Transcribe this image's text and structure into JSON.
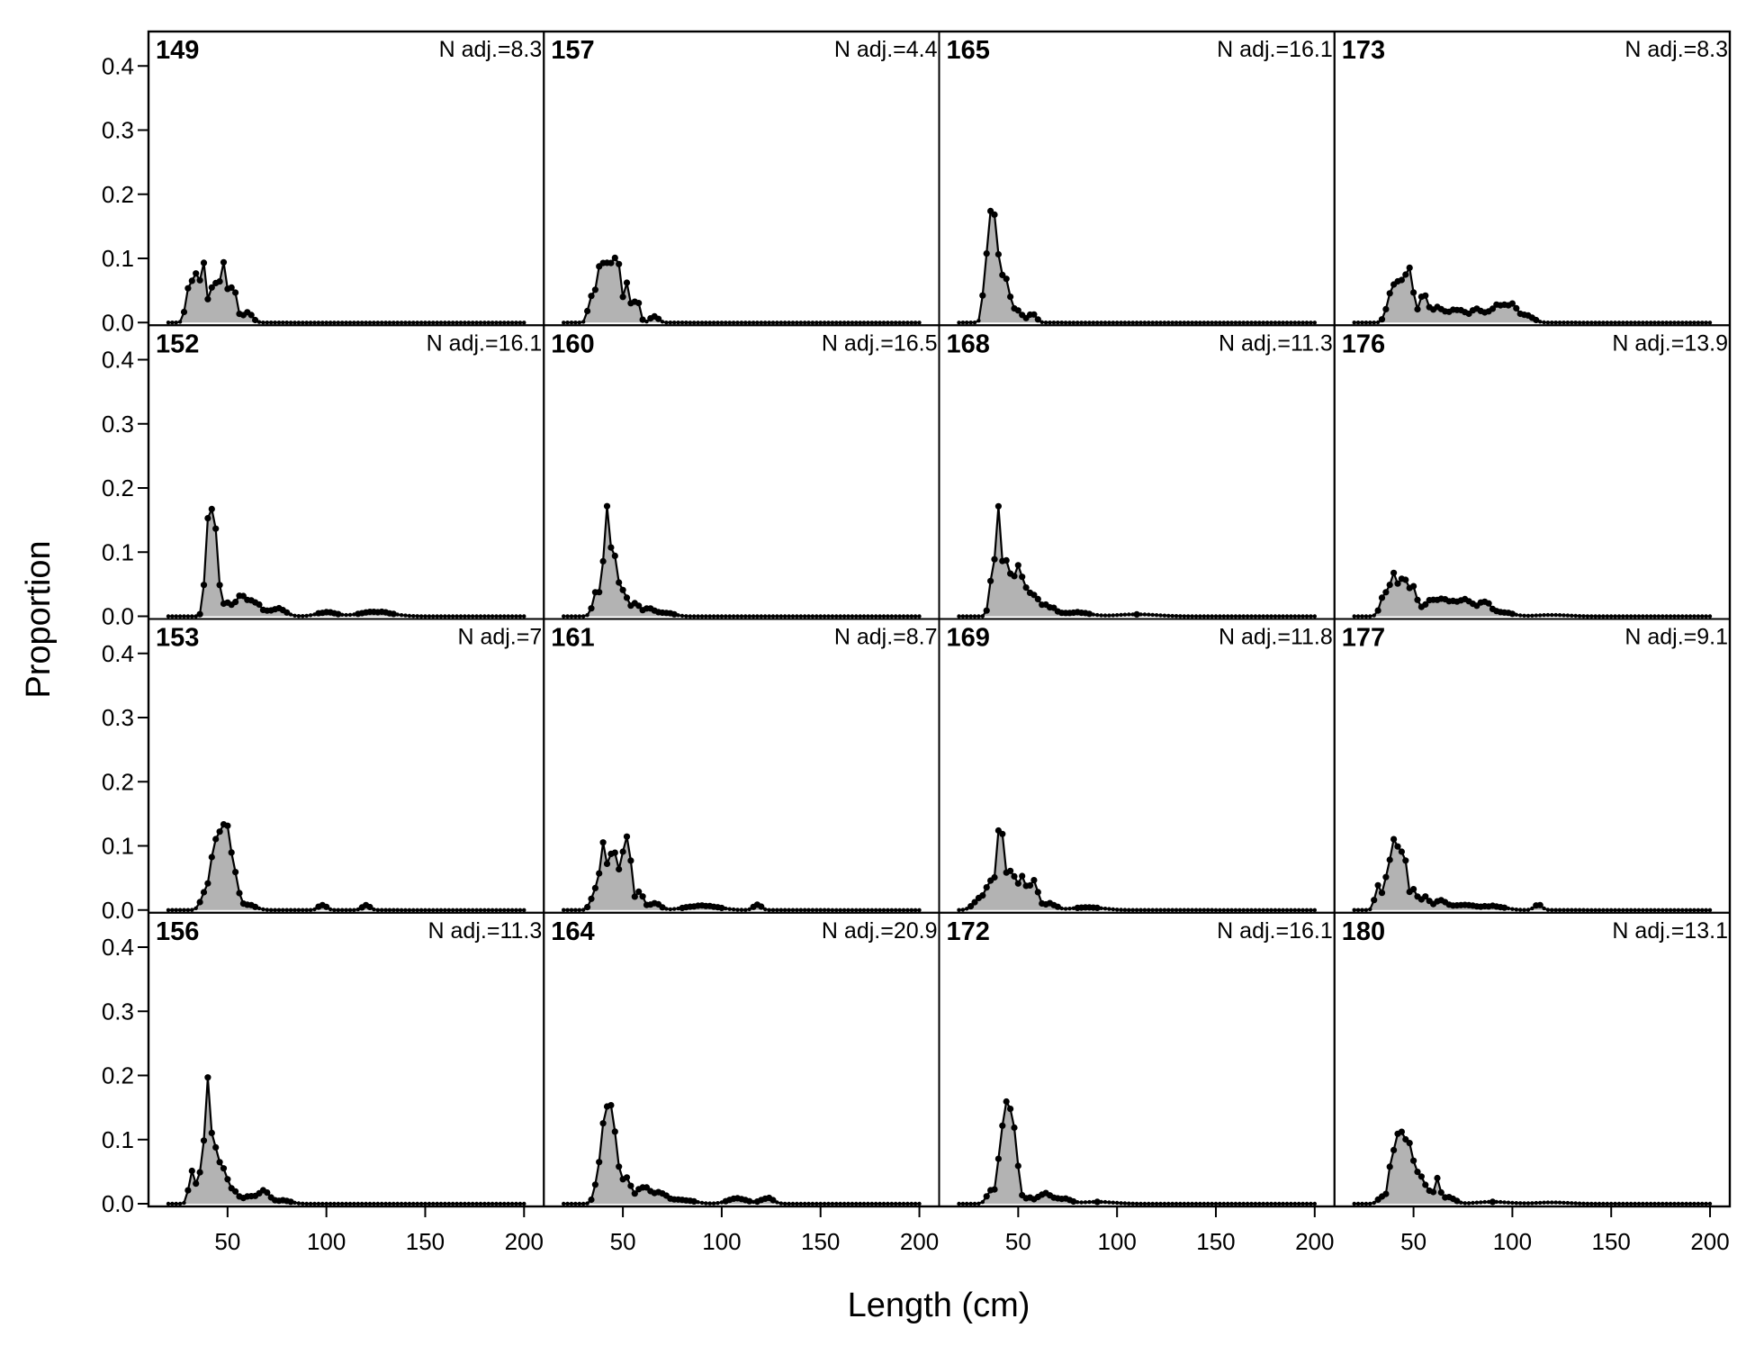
{
  "chart_data": {
    "type": "area",
    "xlabel": "Length (cm)",
    "ylabel": "Proportion",
    "xlim": [
      10,
      210
    ],
    "ylim": [
      0,
      0.42
    ],
    "xticks": [
      50,
      100,
      150,
      200
    ],
    "yticks": [
      0.0,
      0.1,
      0.2,
      0.3,
      0.4
    ],
    "xtick_labels": [
      "50",
      "100",
      "150",
      "200"
    ],
    "ytick_labels": [
      "0.0",
      "0.1",
      "0.2",
      "0.3",
      "0.4"
    ],
    "layout": {
      "rows": 4,
      "cols": 4
    },
    "colors": {
      "fill": "#b3b3b3",
      "line": "#000000",
      "points": "#000000"
    },
    "panels": [
      {
        "id": "149",
        "nadj": "N adj.=8.3",
        "peaks": [
          [
            30,
            0.04,
            1.5
          ],
          [
            34,
            0.075,
            2
          ],
          [
            38,
            0.08,
            1.2
          ],
          [
            43,
            0.06,
            2
          ],
          [
            48,
            0.085,
            1.8
          ],
          [
            53,
            0.06,
            1.5
          ],
          [
            60,
            0.015,
            2.5
          ]
        ]
      },
      {
        "id": "157",
        "nadj": "N adj.=4.4",
        "peaks": [
          [
            34,
            0.04,
            1.5
          ],
          [
            39,
            0.095,
            2
          ],
          [
            43,
            0.1,
            1.2
          ],
          [
            47,
            0.11,
            1.5
          ],
          [
            52,
            0.06,
            1.5
          ],
          [
            57,
            0.035,
            1.5
          ],
          [
            66,
            0.01,
            2
          ]
        ]
      },
      {
        "id": "165",
        "nadj": "N adj.=16.1",
        "peaks": [
          [
            34,
            0.1,
            1.5
          ],
          [
            37,
            0.165,
            1.2
          ],
          [
            40,
            0.1,
            1.5
          ],
          [
            44,
            0.06,
            2
          ],
          [
            50,
            0.02,
            2
          ],
          [
            57,
            0.015,
            2
          ]
        ]
      },
      {
        "id": "173",
        "nadj": "N adj.=8.3",
        "peaks": [
          [
            38,
            0.03,
            2
          ],
          [
            43,
            0.06,
            3
          ],
          [
            48,
            0.065,
            2
          ],
          [
            55,
            0.04,
            2
          ],
          [
            62,
            0.025,
            3
          ],
          [
            72,
            0.02,
            4
          ],
          [
            82,
            0.02,
            3
          ],
          [
            92,
            0.025,
            4
          ],
          [
            100,
            0.025,
            3
          ],
          [
            108,
            0.01,
            3
          ]
        ]
      },
      {
        "id": "152",
        "nadj": "N adj.=16.1",
        "peaks": [
          [
            40,
            0.1,
            1.5
          ],
          [
            43,
            0.145,
            2
          ],
          [
            50,
            0.02,
            2
          ],
          [
            57,
            0.03,
            3
          ],
          [
            64,
            0.02,
            3
          ],
          [
            75,
            0.012,
            4
          ],
          [
            100,
            0.006,
            5
          ],
          [
            125,
            0.007,
            8
          ]
        ]
      },
      {
        "id": "160",
        "nadj": "N adj.=16.5",
        "peaks": [
          [
            37,
            0.04,
            2
          ],
          [
            42,
            0.18,
            1.5
          ],
          [
            46,
            0.08,
            1.5
          ],
          [
            50,
            0.04,
            2
          ],
          [
            56,
            0.02,
            2
          ],
          [
            63,
            0.012,
            3
          ],
          [
            72,
            0.005,
            4
          ]
        ]
      },
      {
        "id": "168",
        "nadj": "N adj.=11.3",
        "peaks": [
          [
            37,
            0.07,
            1.5
          ],
          [
            40,
            0.15,
            1.2
          ],
          [
            44,
            0.08,
            2
          ],
          [
            50,
            0.08,
            2.5
          ],
          [
            57,
            0.03,
            3
          ],
          [
            65,
            0.015,
            4
          ],
          [
            80,
            0.006,
            6
          ],
          [
            110,
            0.003,
            10
          ]
        ]
      },
      {
        "id": "176",
        "nadj": "N adj.=13.9",
        "peaks": [
          [
            35,
            0.03,
            2
          ],
          [
            40,
            0.06,
            2
          ],
          [
            45,
            0.06,
            2
          ],
          [
            50,
            0.04,
            2
          ],
          [
            58,
            0.02,
            3
          ],
          [
            66,
            0.025,
            4
          ],
          [
            76,
            0.025,
            4
          ],
          [
            86,
            0.02,
            3
          ],
          [
            95,
            0.006,
            5
          ],
          [
            120,
            0.002,
            8
          ]
        ]
      },
      {
        "id": "153",
        "nadj": "N adj.=7",
        "peaks": [
          [
            38,
            0.02,
            2
          ],
          [
            44,
            0.11,
            2.5
          ],
          [
            49,
            0.13,
            2
          ],
          [
            53,
            0.06,
            2
          ],
          [
            60,
            0.008,
            4
          ],
          [
            98,
            0.008,
            2
          ],
          [
            120,
            0.007,
            2
          ]
        ]
      },
      {
        "id": "161",
        "nadj": "N adj.=8.7",
        "peaks": [
          [
            36,
            0.03,
            2
          ],
          [
            40,
            0.1,
            1.5
          ],
          [
            45,
            0.09,
            2
          ],
          [
            50,
            0.08,
            1.5
          ],
          [
            53,
            0.11,
            1.2
          ],
          [
            58,
            0.03,
            2
          ],
          [
            66,
            0.01,
            3
          ],
          [
            90,
            0.007,
            8
          ],
          [
            118,
            0.008,
            2
          ]
        ]
      },
      {
        "id": "169",
        "nadj": "N adj.=11.8",
        "peaks": [
          [
            30,
            0.015,
            3
          ],
          [
            36,
            0.04,
            2.5
          ],
          [
            41,
            0.13,
            1.5
          ],
          [
            46,
            0.06,
            2
          ],
          [
            52,
            0.05,
            2.5
          ],
          [
            58,
            0.04,
            2
          ],
          [
            66,
            0.01,
            3
          ],
          [
            85,
            0.004,
            8
          ]
        ]
      },
      {
        "id": "177",
        "nadj": "N adj.=9.1",
        "peaks": [
          [
            32,
            0.04,
            1.5
          ],
          [
            37,
            0.06,
            1.5
          ],
          [
            41,
            0.11,
            1.8
          ],
          [
            45,
            0.09,
            1.5
          ],
          [
            50,
            0.03,
            2
          ],
          [
            56,
            0.02,
            2
          ],
          [
            64,
            0.015,
            3
          ],
          [
            75,
            0.008,
            5
          ],
          [
            90,
            0.006,
            6
          ],
          [
            113,
            0.008,
            2
          ]
        ]
      },
      {
        "id": "156",
        "nadj": "N adj.=11.3",
        "peaks": [
          [
            32,
            0.05,
            1.5
          ],
          [
            36,
            0.04,
            1.2
          ],
          [
            40,
            0.21,
            1.5
          ],
          [
            44,
            0.08,
            1.5
          ],
          [
            48,
            0.05,
            2
          ],
          [
            53,
            0.02,
            2
          ],
          [
            60,
            0.01,
            3
          ],
          [
            68,
            0.02,
            3
          ],
          [
            78,
            0.005,
            4
          ]
        ]
      },
      {
        "id": "164",
        "nadj": "N adj.=20.9",
        "peaks": [
          [
            38,
            0.05,
            2
          ],
          [
            42,
            0.14,
            2
          ],
          [
            46,
            0.09,
            2
          ],
          [
            52,
            0.04,
            2
          ],
          [
            60,
            0.025,
            3
          ],
          [
            68,
            0.015,
            4
          ],
          [
            80,
            0.006,
            6
          ],
          [
            108,
            0.008,
            5
          ],
          [
            123,
            0.009,
            3
          ]
        ]
      },
      {
        "id": "172",
        "nadj": "N adj.=16.1",
        "peaks": [
          [
            36,
            0.02,
            2
          ],
          [
            41,
            0.08,
            1.5
          ],
          [
            45,
            0.165,
            2
          ],
          [
            49,
            0.07,
            1.5
          ],
          [
            55,
            0.01,
            2
          ],
          [
            63,
            0.016,
            3
          ],
          [
            72,
            0.008,
            4
          ],
          [
            90,
            0.003,
            8
          ]
        ]
      },
      {
        "id": "180",
        "nadj": "N adj.=13.1",
        "peaks": [
          [
            34,
            0.01,
            2
          ],
          [
            39,
            0.06,
            1.5
          ],
          [
            43,
            0.125,
            2
          ],
          [
            48,
            0.09,
            2
          ],
          [
            53,
            0.04,
            2
          ],
          [
            57,
            0.02,
            1.5
          ],
          [
            62,
            0.035,
            1.5
          ],
          [
            68,
            0.01,
            3
          ],
          [
            90,
            0.003,
            8
          ],
          [
            120,
            0.002,
            8
          ]
        ]
      }
    ]
  }
}
